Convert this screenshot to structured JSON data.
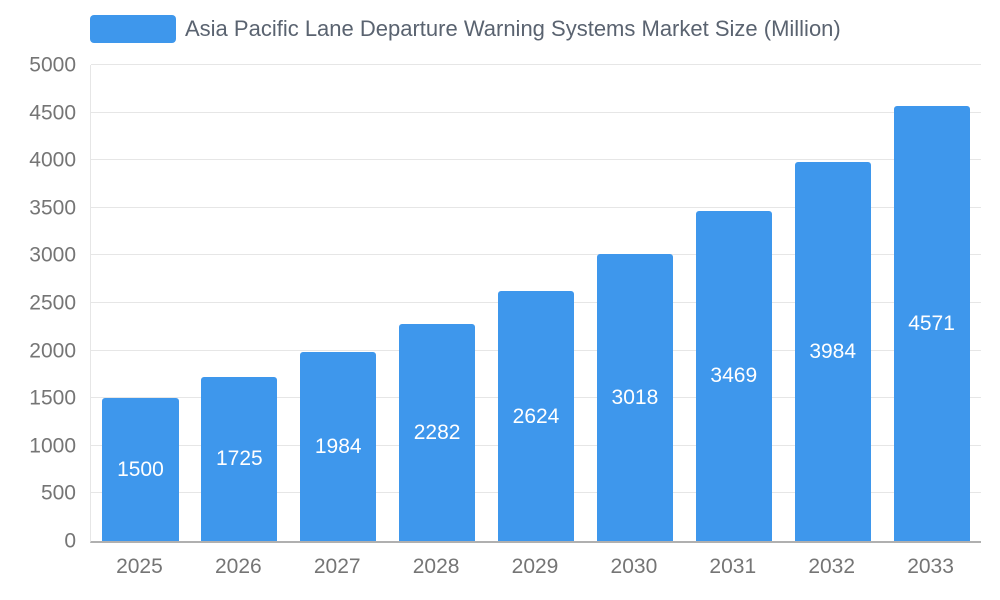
{
  "chart_data": {
    "type": "bar",
    "title": "Asia Pacific Lane Departure Warning Systems Market Size (Million)",
    "categories": [
      "2025",
      "2026",
      "2027",
      "2028",
      "2029",
      "2030",
      "2031",
      "2032",
      "2033"
    ],
    "values": [
      1500,
      1725,
      1984,
      2282,
      2624,
      3018,
      3469,
      3984,
      4571
    ],
    "xlabel": "",
    "ylabel": "",
    "ylim": [
      0,
      5000
    ],
    "ytick_step": 500,
    "grid": true,
    "legend_position": "top-left",
    "bar_color": "#3E97EC",
    "value_label_color": "#FFFFFF"
  },
  "colors": {
    "background": "#FFFFFF",
    "axis_text": "#757575",
    "title_text": "#5A6370",
    "gridline": "#E6E6E6",
    "axis_line": "#B0B0B0"
  }
}
